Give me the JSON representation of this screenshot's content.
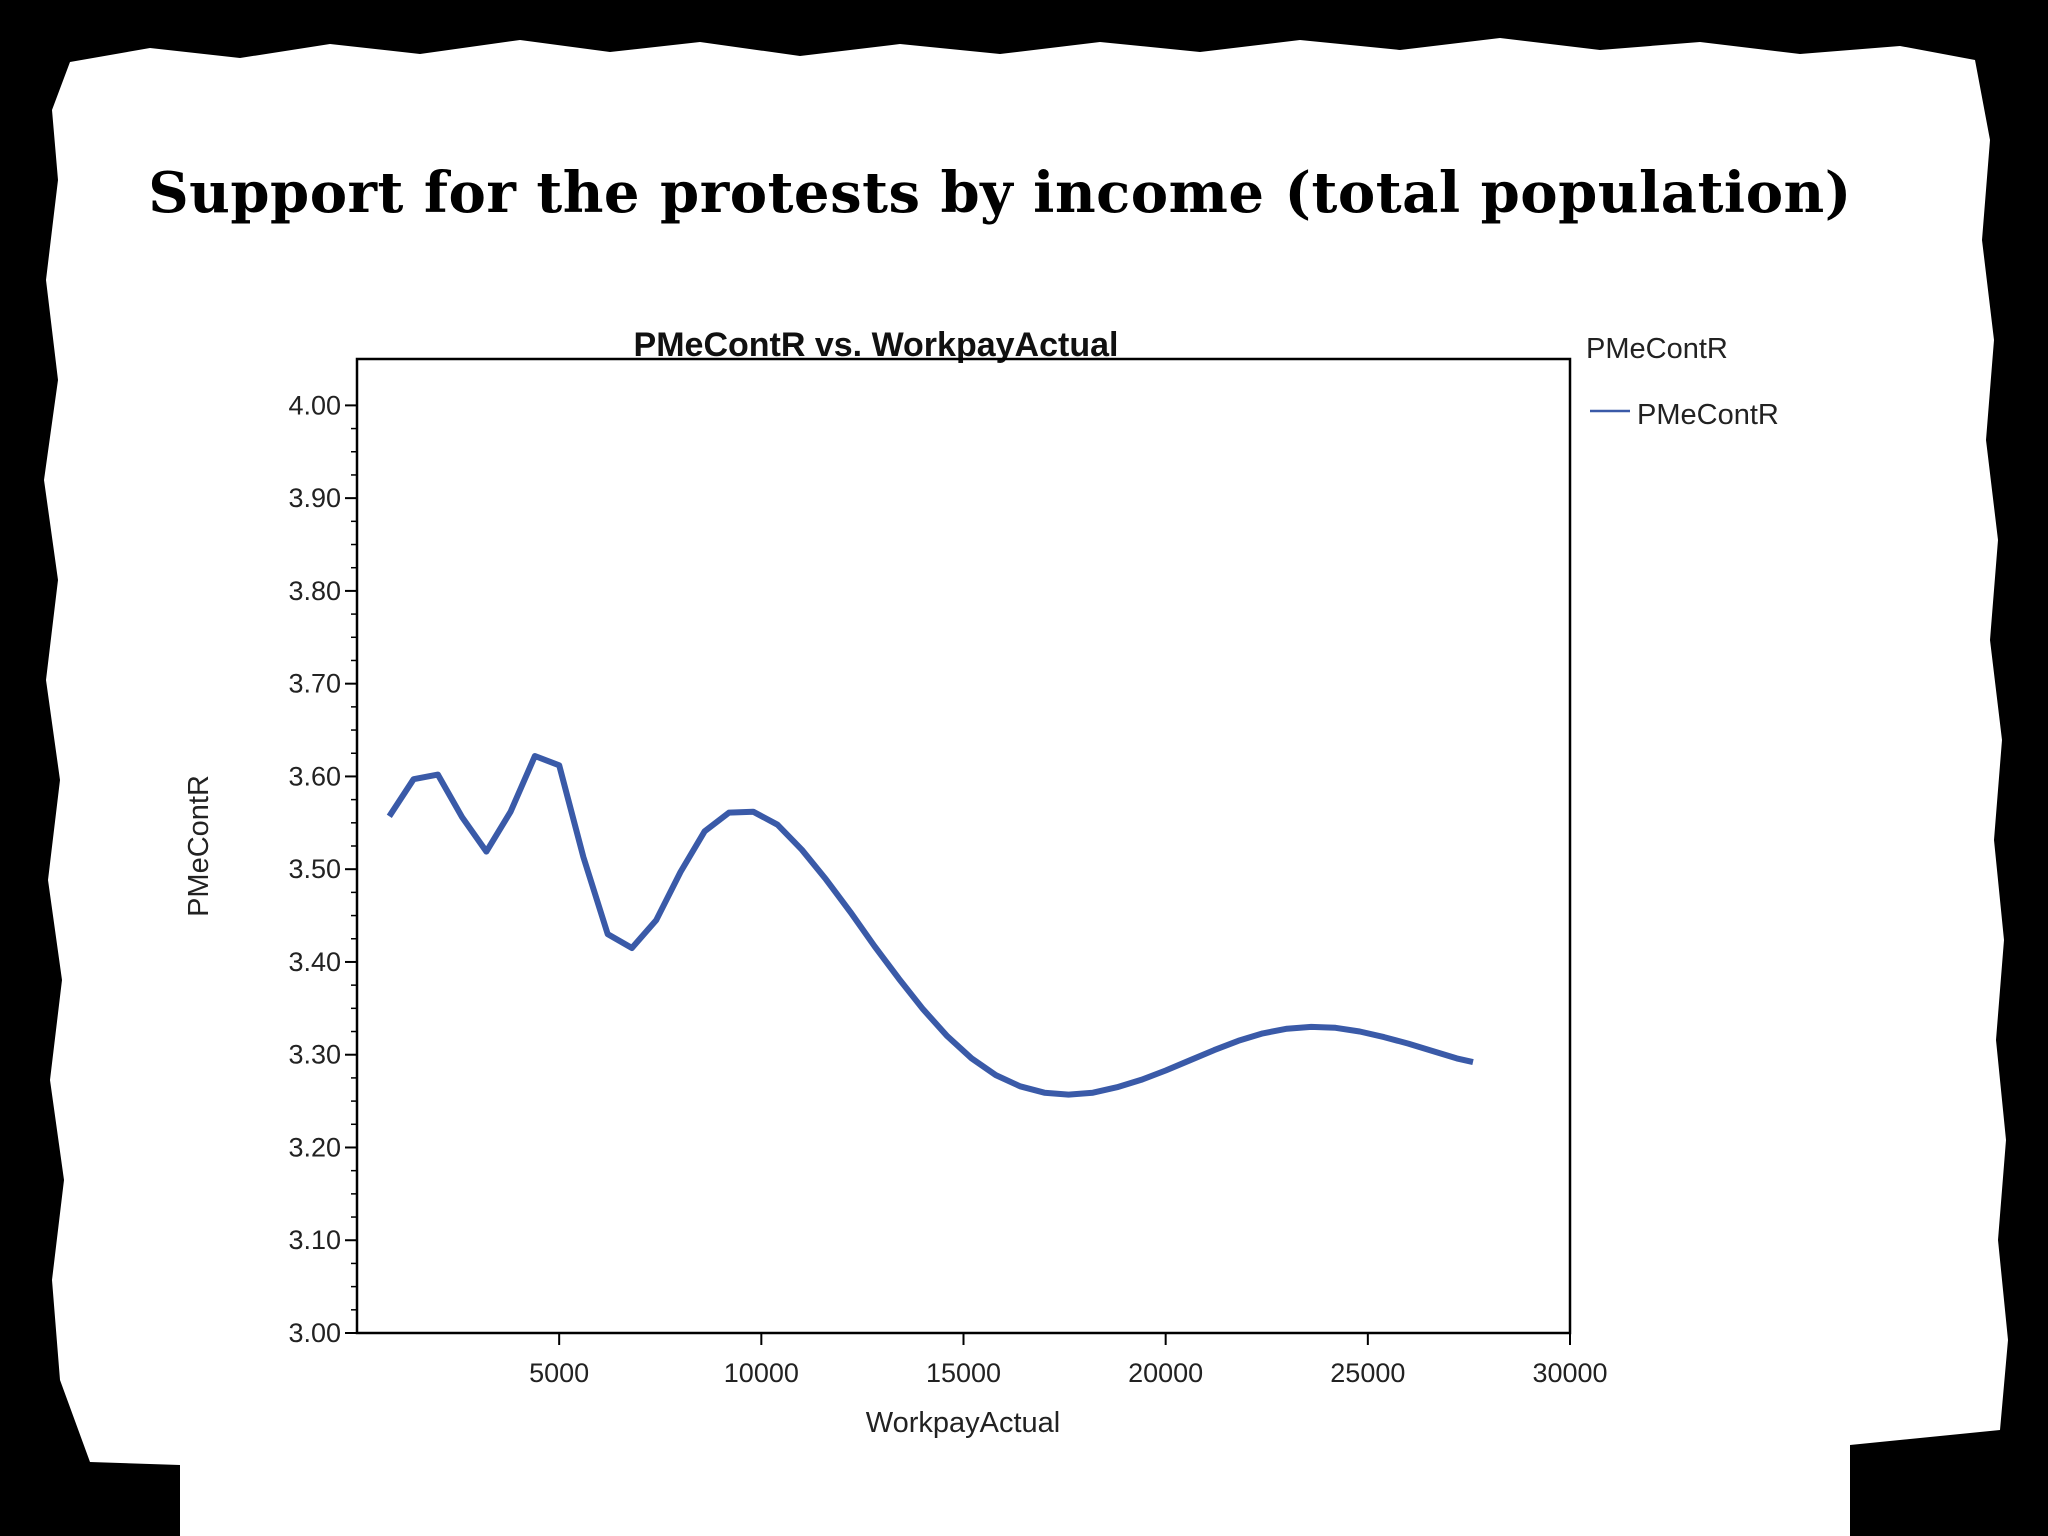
{
  "slide": {
    "title": "Support for the protests by income (total population)"
  },
  "colors": {
    "line": "#3a5aa8",
    "background": "#ffffff",
    "frame": "#000000"
  },
  "chart_data": {
    "type": "line",
    "title": "PMeContR vs. WorkpayActual",
    "xlabel": "WorkpayActual",
    "ylabel": "PMeContR",
    "xlim": [
      0,
      30000
    ],
    "ylim": [
      3.0,
      4.05
    ],
    "xticks": [
      "5000",
      "10000",
      "15000",
      "20000",
      "25000",
      "30000"
    ],
    "yticks": [
      "3.00",
      "3.10",
      "3.20",
      "3.30",
      "3.40",
      "3.50",
      "3.60",
      "3.70",
      "3.80",
      "3.90",
      "4.00"
    ],
    "legend": {
      "title": "PMeContR",
      "placement": "right",
      "entries": [
        "PMeContR"
      ]
    },
    "grid": false,
    "series": [
      {
        "name": "PMeContR",
        "x": [
          800,
          1400,
          2000,
          2600,
          3200,
          3800,
          4400,
          5000,
          5600,
          6200,
          6800,
          7400,
          8000,
          8600,
          9200,
          9800,
          10400,
          11000,
          11600,
          12200,
          12800,
          13400,
          14000,
          14600,
          15200,
          15800,
          16400,
          17000,
          17600,
          18200,
          18800,
          19400,
          20000,
          20600,
          21200,
          21800,
          22400,
          23000,
          23600,
          24200,
          24800,
          25400,
          26000,
          26600,
          27200,
          27600
        ],
        "values": [
          3.557,
          3.597,
          3.602,
          3.556,
          3.519,
          3.562,
          3.622,
          3.612,
          3.513,
          3.43,
          3.415,
          3.445,
          3.497,
          3.541,
          3.561,
          3.562,
          3.548,
          3.521,
          3.489,
          3.454,
          3.417,
          3.382,
          3.349,
          3.32,
          3.296,
          3.278,
          3.266,
          3.259,
          3.257,
          3.259,
          3.265,
          3.273,
          3.283,
          3.294,
          3.305,
          3.315,
          3.323,
          3.328,
          3.33,
          3.329,
          3.325,
          3.319,
          3.312,
          3.304,
          3.296,
          3.292
        ]
      }
    ]
  }
}
